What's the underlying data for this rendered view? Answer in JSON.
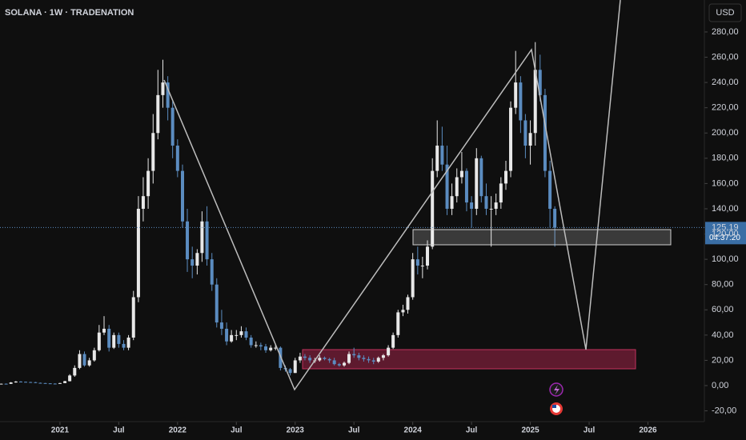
{
  "chart_data": {
    "type": "candlestick",
    "title": "SOLANA · 1W · TRADENATION",
    "currency": "USD",
    "last_price": {
      "value": 125.19,
      "label": "125,19"
    },
    "countdown": "04:37:20",
    "xlim": [
      2020.49,
      2026.48
    ],
    "ylim": [
      -28.5,
      305.3
    ],
    "xticks": [
      2021,
      {
        "value": 2021.5,
        "label": "Jul"
      },
      2022,
      {
        "value": 2022.5,
        "label": "Jul"
      },
      2023,
      {
        "value": 2023.5,
        "label": "Jul"
      },
      2024,
      {
        "value": 2024.5,
        "label": "Jul"
      },
      2025,
      {
        "value": 2025.5,
        "label": "Jul"
      },
      2026
    ],
    "yticks": [
      {
        "value": -20,
        "label": "-20,00"
      },
      {
        "value": 0,
        "label": "0,00"
      },
      {
        "value": 20,
        "label": "20,00"
      },
      {
        "value": 40,
        "label": "40,00"
      },
      {
        "value": 60,
        "label": "60,00"
      },
      {
        "value": 80,
        "label": "80,00"
      },
      {
        "value": 100,
        "label": "100,00"
      },
      {
        "value": 120,
        "label": "120,00"
      },
      {
        "value": 140,
        "label": "140,00"
      },
      {
        "value": 160,
        "label": "160,00"
      },
      {
        "value": 180,
        "label": "180,00"
      },
      {
        "value": 200,
        "label": "200,00"
      },
      {
        "value": 220,
        "label": "220,00"
      },
      {
        "value": 240,
        "label": "240,00"
      },
      {
        "value": 260,
        "label": "260,00"
      },
      {
        "value": 280,
        "label": "280,00"
      }
    ],
    "up_color": "#e8e8e8",
    "down_color": "#5b8cc0",
    "x": [
      2020.5,
      2020.542,
      2020.583,
      2020.625,
      2020.667,
      2020.708,
      2020.75,
      2020.792,
      2020.833,
      2020.875,
      2020.917,
      2020.958,
      2021,
      2021.042,
      2021.083,
      2021.125,
      2021.167,
      2021.208,
      2021.25,
      2021.292,
      2021.333,
      2021.375,
      2021.417,
      2021.458,
      2021.5,
      2021.542,
      2021.583,
      2021.625,
      2021.667,
      2021.708,
      2021.75,
      2021.792,
      2021.833,
      2021.875,
      2021.917,
      2021.958,
      2022,
      2022.042,
      2022.083,
      2022.125,
      2022.167,
      2022.208,
      2022.25,
      2022.292,
      2022.333,
      2022.375,
      2022.417,
      2022.458,
      2022.5,
      2022.542,
      2022.583,
      2022.625,
      2022.667,
      2022.708,
      2022.75,
      2022.792,
      2022.833,
      2022.875,
      2022.917,
      2022.958,
      2023,
      2023.042,
      2023.083,
      2023.125,
      2023.167,
      2023.208,
      2023.25,
      2023.292,
      2023.333,
      2023.375,
      2023.417,
      2023.458,
      2023.5,
      2023.542,
      2023.583,
      2023.625,
      2023.667,
      2023.708,
      2023.75,
      2023.792,
      2023.833,
      2023.875,
      2023.917,
      2023.958,
      2024,
      2024.042,
      2024.083,
      2024.125,
      2024.167,
      2024.208,
      2024.25,
      2024.292,
      2024.333,
      2024.375,
      2024.417,
      2024.458,
      2024.5,
      2024.542,
      2024.583,
      2024.625,
      2024.667,
      2024.708,
      2024.75,
      2024.792,
      2024.833,
      2024.875,
      2024.917,
      2024.958,
      2025,
      2025.042,
      2025.083,
      2025.125,
      2025.167,
      2025.208
    ],
    "open": [
      1.3,
      1.5,
      1.4,
      2.5,
      3.2,
      3.0,
      2.8,
      2.7,
      2.2,
      2.0,
      1.8,
      1.6,
      1.5,
      2.0,
      3.5,
      8,
      14,
      25,
      16,
      20,
      28,
      42,
      45,
      30,
      40,
      33,
      30,
      38,
      70,
      140,
      150,
      170,
      200,
      230,
      240,
      220,
      190,
      170,
      130,
      100,
      95,
      105,
      130,
      100,
      80,
      50,
      45,
      35,
      40,
      40,
      43,
      38,
      32,
      32,
      31,
      28,
      30,
      30,
      14,
      13,
      10,
      20,
      23,
      22,
      20,
      20,
      22,
      21,
      20,
      17,
      16,
      18,
      25,
      24,
      22,
      21,
      20,
      19,
      22,
      24,
      30,
      40,
      58,
      60,
      70,
      100,
      95,
      95,
      110,
      170,
      190,
      175,
      140,
      150,
      165,
      170,
      145,
      140,
      180,
      150,
      140,
      140,
      145,
      160,
      170,
      220,
      240,
      210,
      190,
      200,
      250,
      230,
      170,
      140
    ],
    "high": [
      1.6,
      1.7,
      2.8,
      3.6,
      3.5,
      3.2,
      3.0,
      2.9,
      2.4,
      2.1,
      1.9,
      1.8,
      2.2,
      3.8,
      9,
      16,
      28,
      27,
      22,
      30,
      48,
      55,
      48,
      42,
      42,
      36,
      40,
      75,
      150,
      165,
      180,
      215,
      250,
      258,
      245,
      225,
      195,
      175,
      140,
      110,
      108,
      138,
      142,
      105,
      85,
      60,
      50,
      44,
      44,
      47,
      46,
      40,
      35,
      34,
      33,
      32,
      33,
      31,
      16,
      14,
      22,
      26,
      25,
      24,
      22,
      24,
      23,
      22,
      22,
      18,
      19,
      27,
      30,
      26,
      24,
      23,
      22,
      23,
      25,
      32,
      42,
      60,
      64,
      72,
      105,
      110,
      102,
      115,
      180,
      210,
      205,
      190,
      160,
      172,
      185,
      172,
      150,
      188,
      182,
      160,
      150,
      152,
      165,
      178,
      225,
      265,
      245,
      215,
      210,
      272,
      262,
      235,
      178,
      142
    ],
    "low": [
      1.2,
      1.3,
      1.3,
      2.3,
      2.8,
      2.6,
      2.5,
      2.0,
      1.8,
      1.6,
      1.4,
      1.3,
      1.4,
      1.9,
      3.3,
      7,
      13,
      15,
      15,
      19,
      27,
      40,
      27,
      29,
      30,
      28,
      28,
      36,
      66,
      130,
      140,
      160,
      195,
      220,
      210,
      180,
      165,
      125,
      90,
      85,
      88,
      98,
      95,
      75,
      46,
      40,
      32,
      34,
      36,
      38,
      36,
      30,
      30,
      28,
      26,
      27,
      28,
      12,
      11,
      8,
      10,
      18,
      20,
      18,
      18,
      19,
      20,
      18,
      16,
      15,
      15,
      17,
      22,
      20,
      19,
      18,
      17,
      18,
      20,
      23,
      29,
      38,
      55,
      57,
      68,
      88,
      85,
      92,
      108,
      165,
      170,
      135,
      135,
      145,
      160,
      138,
      125,
      135,
      145,
      135,
      110,
      135,
      140,
      155,
      165,
      215,
      200,
      180,
      175,
      190,
      225,
      165,
      125,
      110
    ],
    "close": [
      1.5,
      1.4,
      2.5,
      3.2,
      3.0,
      2.8,
      2.7,
      2.2,
      2.0,
      1.8,
      1.6,
      1.5,
      2.0,
      3.5,
      8,
      14,
      25,
      16,
      20,
      28,
      42,
      45,
      30,
      40,
      33,
      30,
      38,
      70,
      140,
      150,
      170,
      200,
      230,
      240,
      220,
      190,
      170,
      130,
      100,
      95,
      105,
      130,
      100,
      80,
      50,
      45,
      35,
      40,
      40,
      43,
      38,
      32,
      32,
      31,
      28,
      30,
      30,
      14,
      13,
      10,
      20,
      23,
      22,
      20,
      20,
      22,
      21,
      20,
      17,
      16,
      18,
      25,
      24,
      22,
      21,
      20,
      19,
      22,
      24,
      30,
      40,
      58,
      60,
      70,
      100,
      95,
      95,
      110,
      170,
      190,
      175,
      140,
      150,
      165,
      170,
      145,
      140,
      180,
      150,
      140,
      140,
      145,
      160,
      170,
      220,
      240,
      210,
      190,
      200,
      250,
      230,
      170,
      140,
      125
    ]
  }
}
